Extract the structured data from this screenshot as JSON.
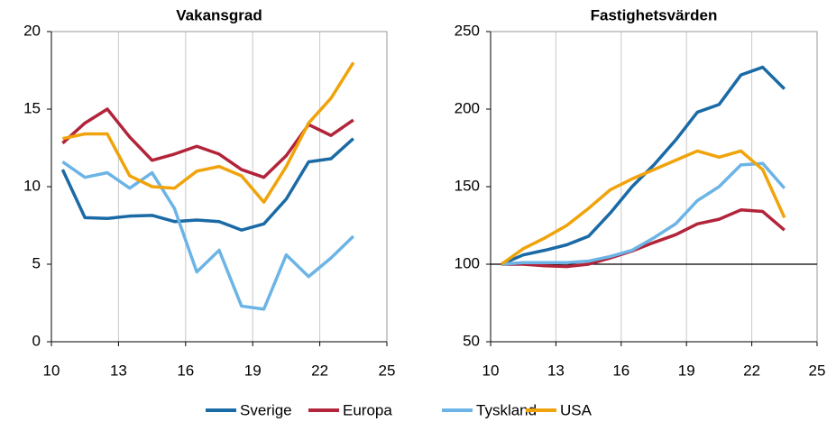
{
  "chart_data": [
    {
      "type": "line",
      "title": "Vakansgrad",
      "x": [
        10.5,
        11.5,
        12.5,
        13.5,
        14.5,
        15.5,
        16.5,
        17.5,
        18.5,
        19.5,
        20.5,
        21.5,
        22.5,
        23.5
      ],
      "series": [
        {
          "name": "Sverige",
          "color": "#1a6aa6",
          "values": [
            11.1,
            8.0,
            7.95,
            8.1,
            8.15,
            7.75,
            7.85,
            7.75,
            7.2,
            7.6,
            9.2,
            11.6,
            11.8,
            13.1
          ]
        },
        {
          "name": "Europa",
          "color": "#b2243a",
          "values": [
            12.8,
            14.1,
            15.0,
            13.2,
            11.7,
            12.1,
            12.6,
            12.1,
            11.1,
            10.6,
            12.0,
            14.0,
            13.3,
            14.3
          ]
        },
        {
          "name": "Tyskland",
          "color": "#6cb4e6",
          "values": [
            11.6,
            10.6,
            10.9,
            9.9,
            10.9,
            8.6,
            4.5,
            5.9,
            2.3,
            2.1,
            5.6,
            4.2,
            5.4,
            6.8
          ]
        },
        {
          "name": "USA",
          "color": "#f0a30a",
          "values": [
            13.1,
            13.4,
            13.4,
            10.7,
            10.0,
            9.9,
            11.0,
            11.3,
            10.7,
            9.0,
            11.3,
            14.1,
            15.7,
            18.0
          ]
        }
      ],
      "xlim": [
        10,
        25
      ],
      "xticks": [
        10,
        13,
        16,
        19,
        22,
        25
      ],
      "ylim": [
        0,
        20
      ],
      "yticks": [
        0,
        5,
        10,
        15,
        20
      ],
      "grid": true
    },
    {
      "type": "line",
      "title": "Fastighetsvärden",
      "x": [
        10.5,
        11.5,
        12.5,
        13.5,
        14.5,
        15.5,
        16.5,
        17.5,
        18.5,
        19.5,
        20.5,
        21.5,
        22.5,
        23.5
      ],
      "series": [
        {
          "color": "#1a6aa6",
          "values": [
            100,
            106,
            109,
            112.5,
            118,
            133,
            150,
            164,
            180,
            198,
            203,
            222,
            227,
            213
          ]
        },
        {
          "color": "#b2243a",
          "values": [
            100,
            100,
            99,
            98.5,
            100,
            104,
            108.5,
            114,
            119,
            126,
            129,
            135,
            134,
            122
          ]
        },
        {
          "color": "#6cb4e6",
          "values": [
            100,
            101,
            101,
            101,
            102,
            105,
            109,
            117,
            126,
            141,
            150,
            164,
            165,
            149
          ]
        },
        {
          "color": "#f0a30a",
          "values": [
            100,
            110,
            117,
            125,
            136,
            148,
            155,
            161,
            167,
            173,
            169,
            173,
            161,
            130
          ]
        }
      ],
      "xlim": [
        10,
        25
      ],
      "xticks": [
        10,
        13,
        16,
        19,
        22,
        25
      ],
      "ylim": [
        50,
        250
      ],
      "yticks": [
        50,
        100,
        150,
        200,
        250
      ],
      "grid": true,
      "hline": 100
    }
  ]
}
